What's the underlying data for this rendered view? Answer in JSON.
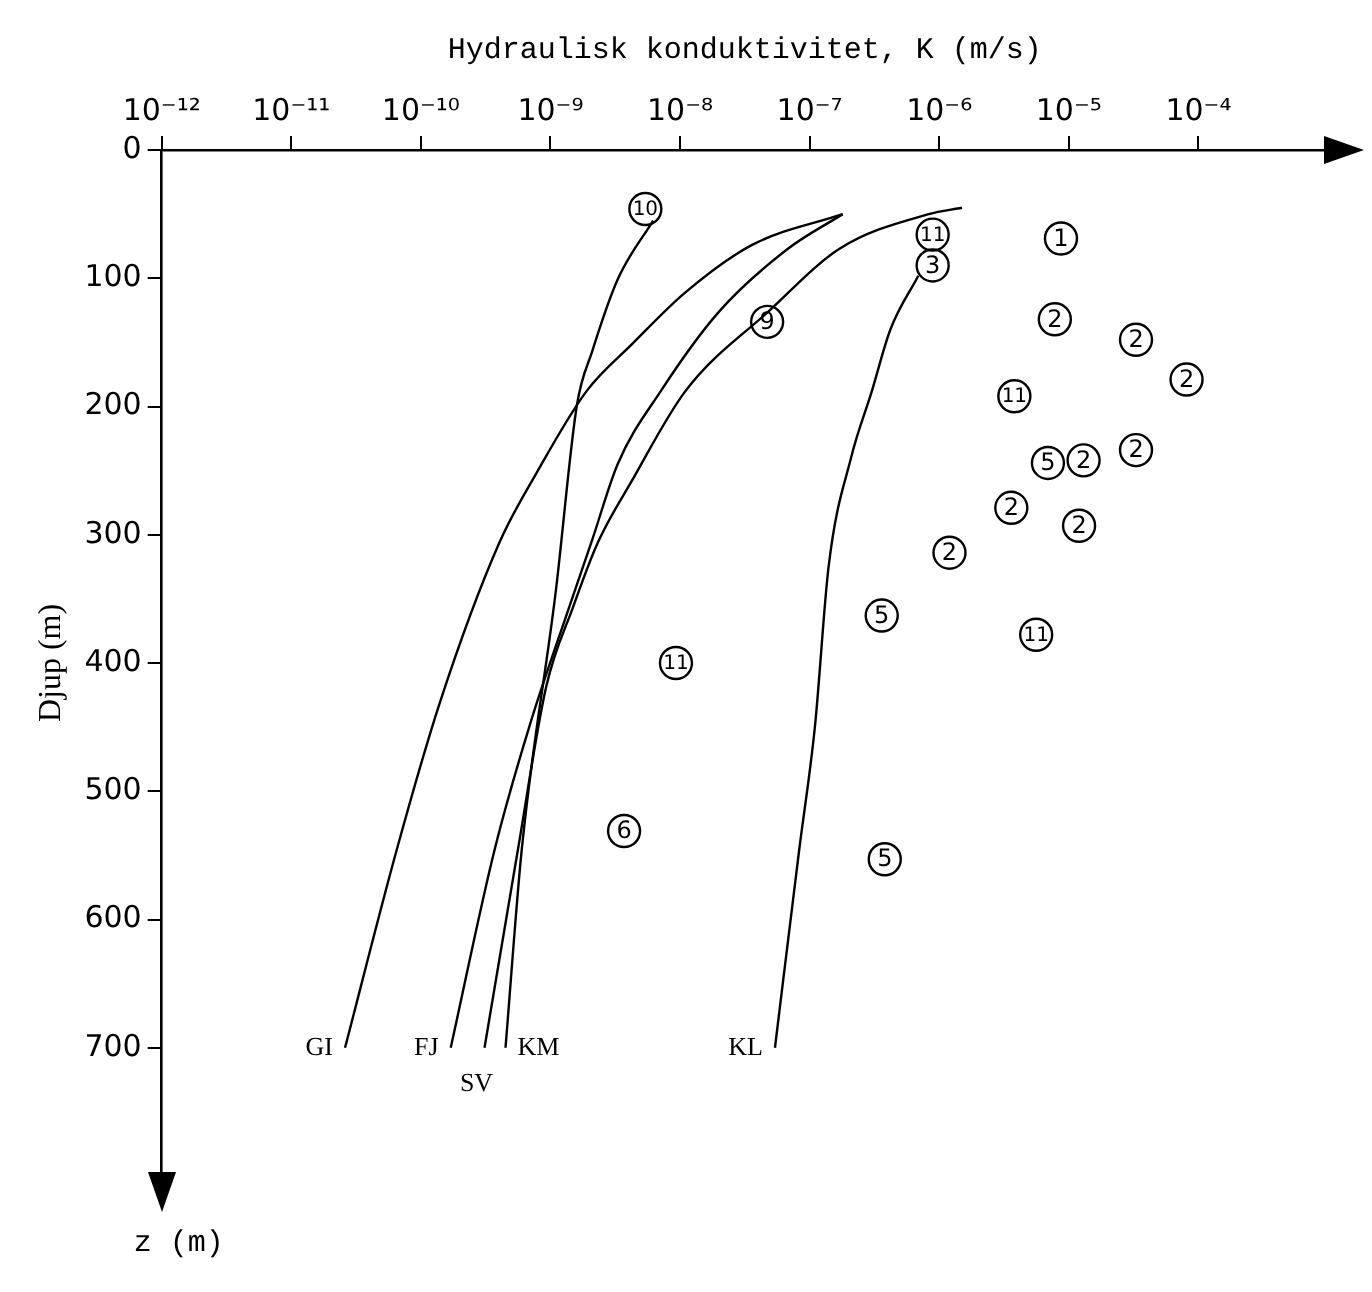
{
  "chart_data": {
    "type": "scatter",
    "xlabel": "Hydraulisk konduktivitet, K (m/s)",
    "ylabel": "Djup (m)",
    "annotations": [
      "z (m)"
    ],
    "log": "x",
    "xlim": [
      1e-12,
      0.001
    ],
    "xticks": [
      {
        "value": 1e-12,
        "label": "10⁻¹²"
      },
      {
        "value": 1e-11,
        "label": "10⁻¹¹"
      },
      {
        "value": 1e-10,
        "label": "10⁻¹⁰"
      },
      {
        "value": 1e-09,
        "label": "10⁻⁹"
      },
      {
        "value": 1e-08,
        "label": "10⁻⁸"
      },
      {
        "value": 1e-07,
        "label": "10⁻⁷"
      },
      {
        "value": 1e-06,
        "label": "10⁻⁶"
      },
      {
        "value": 1e-05,
        "label": "10⁻⁵"
      },
      {
        "value": 0.0001,
        "label": "10⁻⁴"
      }
    ],
    "ylim": [
      800,
      0
    ],
    "yticks": [
      0,
      100,
      200,
      300,
      400,
      500,
      600,
      700
    ],
    "grid": false,
    "legend": false,
    "marker": "circle",
    "series": [
      {
        "name": "GI",
        "type": "line",
        "marker": "none",
        "color": "#000000",
        "x": [
          1.8e-07,
          3.6e-08,
          1.1e-08,
          4.3e-09,
          1.9e-09,
          7.9e-10,
          4e-10,
          1.4e-10,
          6.5e-11,
          2.6e-11
        ],
        "values": [
          50,
          74,
          111,
          151,
          188,
          251,
          307,
          431,
          546,
          700
        ]
      },
      {
        "name": "FJ",
        "type": "line",
        "marker": "none",
        "color": "#000000",
        "x": [
          1.8e-07,
          6.8e-08,
          2e-08,
          7.1e-09,
          3.3e-09,
          2.1e-09,
          1.4e-09,
          6.9e-10,
          3.7e-10,
          1.7e-10
        ],
        "values": [
          50,
          77,
          126,
          188,
          245,
          304,
          356,
          449,
          546,
          700
        ]
      },
      {
        "name": "SV",
        "type": "line",
        "marker": "none",
        "color": "#000000",
        "x": [
          1.5e-06,
          8.3e-07,
          1.7e-07,
          4.8e-08,
          1.1e-08,
          4.3e-09,
          2.3e-09,
          1.5e-09,
          9.3e-10,
          5.6e-10,
          3.1e-10
        ],
        "values": [
          45,
          50,
          77,
          126,
          188,
          257,
          307,
          356,
          418,
          546,
          700
        ]
      },
      {
        "name": "KM",
        "type": "line",
        "marker": "none",
        "color": "#000000",
        "x": [
          6.2e-09,
          3.3e-09,
          2.1e-09,
          1.6e-09,
          1.1e-09,
          6e-10,
          4.5e-10
        ],
        "values": [
          55,
          101,
          157,
          199,
          344,
          546,
          700
        ]
      },
      {
        "name": "KL",
        "type": "line",
        "marker": "none",
        "color": "#000000",
        "x": [
          6.9e-07,
          4.2e-07,
          3e-07,
          2.1e-07,
          1.4e-07,
          1.1e-07,
          8.3e-08,
          5.4e-08
        ],
        "values": [
          98,
          140,
          189,
          239,
          325,
          449,
          546,
          700
        ]
      },
      {
        "name": "1",
        "color": "#000000",
        "x": [
          8.7e-06
        ],
        "values": [
          69
        ]
      },
      {
        "name": "2",
        "color": "#000000",
        "x": [
          7.8e-06,
          3.3e-05,
          8.1e-05,
          1.3e-05,
          3.3e-05,
          3.6e-06,
          1.2e-05,
          1.2e-06
        ],
        "values": [
          132,
          148,
          179,
          242,
          234,
          279,
          293,
          314
        ]
      },
      {
        "name": "3",
        "color": "#000000",
        "x": [
          8.9e-07
        ],
        "values": [
          90
        ]
      },
      {
        "name": "5",
        "color": "#000000",
        "x": [
          6.9e-06,
          3.6e-07,
          3.8e-07
        ],
        "values": [
          244,
          363,
          553
        ]
      },
      {
        "name": "6",
        "color": "#000000",
        "x": [
          3.7e-09
        ],
        "values": [
          531
        ]
      },
      {
        "name": "9",
        "color": "#000000",
        "x": [
          4.7e-08
        ],
        "values": [
          134
        ]
      },
      {
        "name": "10",
        "color": "#000000",
        "x": [
          5.4e-09
        ],
        "values": [
          46
        ]
      },
      {
        "name": "11",
        "color": "#000000",
        "x": [
          8.9e-07,
          3.8e-06,
          5.6e-06,
          9.3e-09
        ],
        "values": [
          66,
          192,
          378,
          400
        ]
      }
    ]
  }
}
